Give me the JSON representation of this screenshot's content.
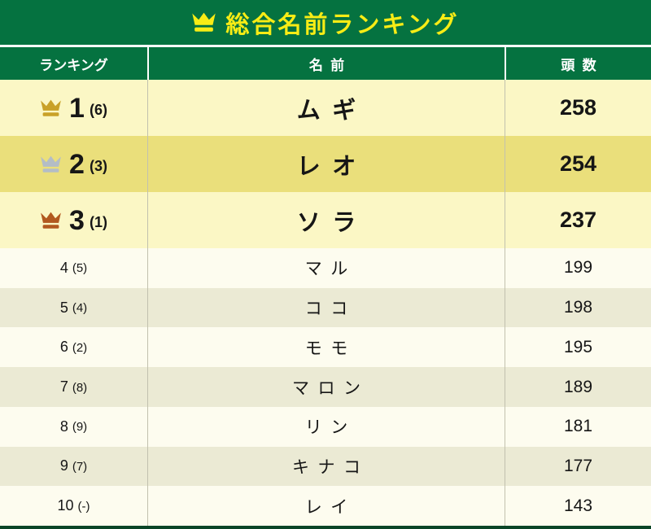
{
  "title": {
    "text": "総合名前ランキング",
    "icon": "crown-icon"
  },
  "table": {
    "headers": [
      {
        "label": "ランキング"
      },
      {
        "label": "名前"
      },
      {
        "label": "頭数"
      }
    ],
    "rows": [
      {
        "rank": "1",
        "change": "(6)",
        "name": "ムギ",
        "count": "258",
        "crown": "gold"
      },
      {
        "rank": "2",
        "change": "(3)",
        "name": "レオ",
        "count": "254",
        "crown": "silver"
      },
      {
        "rank": "3",
        "change": "(1)",
        "name": "ソラ",
        "count": "237",
        "crown": "bronze"
      },
      {
        "rank": "4",
        "change": "(5)",
        "name": "マル",
        "count": "199",
        "crown": null
      },
      {
        "rank": "5",
        "change": "(4)",
        "name": "ココ",
        "count": "198",
        "crown": null
      },
      {
        "rank": "6",
        "change": "(2)",
        "name": "モモ",
        "count": "195",
        "crown": null
      },
      {
        "rank": "7",
        "change": "(8)",
        "name": "マロン",
        "count": "189",
        "crown": null
      },
      {
        "rank": "8",
        "change": "(9)",
        "name": "リン",
        "count": "181",
        "crown": null
      },
      {
        "rank": "9",
        "change": "(7)",
        "name": "キナコ",
        "count": "177",
        "crown": null
      },
      {
        "rank": "10",
        "change": "(-)",
        "name": "レイ",
        "count": "143",
        "crown": null
      }
    ]
  },
  "colors": {
    "header_green": "#057240",
    "title_yellow": "#f8ec15",
    "top_row_light": "#fbf7c5",
    "top_row_dark": "#eadf7b",
    "row_cream": "#fdfcef",
    "row_beige": "#ebead4",
    "crown_gold": "#c9a128",
    "crown_silver": "#b4bdc6",
    "crown_bronze": "#b2591f",
    "column_line": "#c2c1ae",
    "bottom_bar": "#0a4527"
  },
  "chart_data": {
    "type": "table",
    "title": "総合名前ランキング",
    "columns": [
      "ランキング",
      "名前",
      "頭数"
    ],
    "rows": [
      {
        "rank": 1,
        "previous": "6",
        "name": "ムギ",
        "count": 258
      },
      {
        "rank": 2,
        "previous": "3",
        "name": "レオ",
        "count": 254
      },
      {
        "rank": 3,
        "previous": "1",
        "name": "ソラ",
        "count": 237
      },
      {
        "rank": 4,
        "previous": "5",
        "name": "マル",
        "count": 199
      },
      {
        "rank": 5,
        "previous": "4",
        "name": "ココ",
        "count": 198
      },
      {
        "rank": 6,
        "previous": "2",
        "name": "モモ",
        "count": 195
      },
      {
        "rank": 7,
        "previous": "8",
        "name": "マロン",
        "count": 189
      },
      {
        "rank": 8,
        "previous": "9",
        "name": "リン",
        "count": 181
      },
      {
        "rank": 9,
        "previous": "7",
        "name": "キナコ",
        "count": 177
      },
      {
        "rank": 10,
        "previous": "-",
        "name": "レイ",
        "count": 143
      }
    ]
  }
}
